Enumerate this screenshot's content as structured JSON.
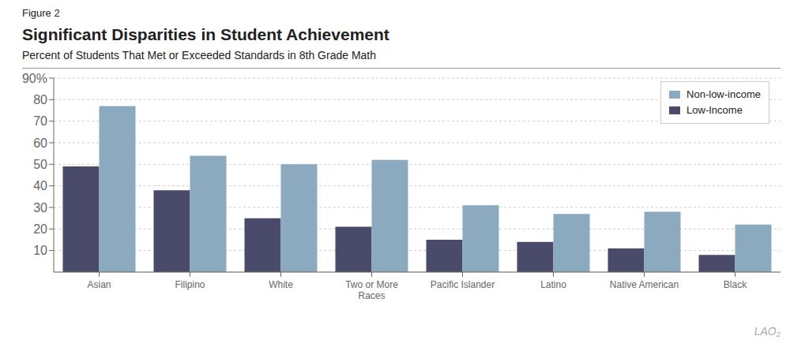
{
  "chart_data": {
    "type": "bar",
    "title": "Significant Disparities in Student Achievement",
    "subtitle": "Percent of Students That Met or Exceeded Standards in 8th Grade Math",
    "annotations": [
      "Figure 2",
      "LAO₂"
    ],
    "categories": [
      "Asian",
      "Filipino",
      "White",
      "Two or More\nRaces",
      "Pacific Islander",
      "Latino",
      "Native American",
      "Black"
    ],
    "series": [
      {
        "name": "Low-Income",
        "color": "#4a4a6a",
        "values": [
          49,
          38,
          25,
          21,
          15,
          14,
          11,
          8
        ]
      },
      {
        "name": "Non-low-income",
        "color": "#8baabf",
        "values": [
          77,
          54,
          50,
          52,
          31,
          27,
          28,
          22
        ]
      }
    ],
    "ylim": [
      0,
      90
    ],
    "yticks": [
      10,
      20,
      30,
      40,
      50,
      60,
      70,
      80,
      {
        "value": 90,
        "label": "90%"
      }
    ],
    "grid": true,
    "legend": "upper right"
  }
}
